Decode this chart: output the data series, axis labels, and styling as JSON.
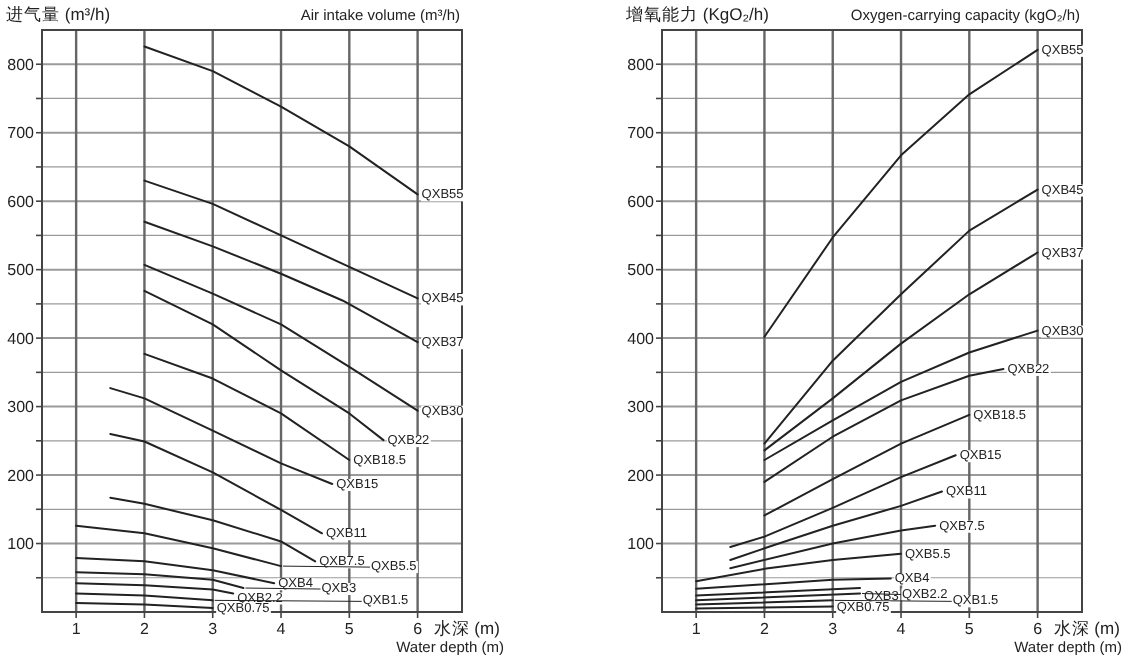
{
  "chart_data": [
    {
      "type": "line",
      "ylabel": "进气量 (m³/h)",
      "title": "Air intake volume (m³/h)",
      "xlabel": "水深 (m)",
      "annotations": [
        "Water depth (m)"
      ],
      "grid": true,
      "xlim": [
        0.5,
        6.65
      ],
      "ylim": [
        0,
        850
      ],
      "xticks": [
        1,
        2,
        3,
        4,
        5,
        6
      ],
      "yticks": [
        {
          "value": 50,
          "label": null
        },
        100,
        {
          "value": 150,
          "label": null
        },
        200,
        {
          "value": 250,
          "label": null
        },
        300,
        {
          "value": 350,
          "label": null
        },
        400,
        {
          "value": 450,
          "label": null
        },
        500,
        {
          "value": 550,
          "label": null
        },
        600,
        {
          "value": 650,
          "label": null
        },
        700,
        {
          "value": 750,
          "label": null
        },
        800
      ],
      "series": [
        {
          "name": "QXB55",
          "color": "#222222",
          "x": [
            2,
            3,
            4,
            5,
            6
          ],
          "values": [
            826,
            790,
            738,
            680,
            610
          ]
        },
        {
          "name": "QXB45",
          "color": "#222222",
          "x": [
            2,
            3,
            4,
            5,
            6
          ],
          "values": [
            630,
            596,
            550,
            504,
            458
          ]
        },
        {
          "name": "QXB37",
          "color": "#222222",
          "x": [
            2,
            3,
            4,
            4.9,
            6
          ],
          "values": [
            570,
            534,
            494,
            455,
            394
          ]
        },
        {
          "name": "QXB30",
          "color": "#222222",
          "x": [
            2,
            3,
            4,
            5,
            6
          ],
          "values": [
            507,
            465,
            420,
            358,
            294
          ]
        },
        {
          "name": "QXB22",
          "color": "#222222",
          "x": [
            2,
            3,
            4,
            5,
            5.5
          ],
          "values": [
            469,
            420,
            353,
            290,
            251
          ]
        },
        {
          "name": "QXB18.5",
          "color": "#222222",
          "x": [
            2,
            3,
            4,
            5
          ],
          "values": [
            377,
            341,
            290,
            222
          ]
        },
        {
          "name": "QXB15",
          "color": "#222222",
          "x": [
            1.5,
            2,
            3,
            4,
            4.75
          ],
          "values": [
            327,
            312,
            265,
            217,
            187
          ]
        },
        {
          "name": "QXB11",
          "color": "#222222",
          "x": [
            1.5,
            2,
            3,
            4,
            4.6
          ],
          "values": [
            260,
            249,
            204,
            149,
            115
          ]
        },
        {
          "name": "QXB7.5",
          "color": "#222222",
          "x": [
            1.5,
            2,
            3,
            4,
            4.5
          ],
          "values": [
            167,
            158,
            134,
            103,
            74
          ]
        },
        {
          "name": "QXB5.5",
          "color": "#222222",
          "x": [
            1,
            2,
            3,
            4
          ],
          "values": [
            126,
            115,
            93,
            67
          ]
        },
        {
          "name": "QXB4",
          "color": "#222222",
          "x": [
            1,
            2,
            3,
            3.9
          ],
          "values": [
            79,
            74,
            61,
            42
          ]
        },
        {
          "name": "QXB3",
          "color": "#222222",
          "x": [
            1,
            2,
            3,
            3.45
          ],
          "values": [
            58,
            55,
            47,
            35
          ]
        },
        {
          "name": "QXB2.2",
          "color": "#222222",
          "x": [
            1,
            2,
            3,
            3.3
          ],
          "values": [
            42,
            39,
            33,
            27
          ]
        },
        {
          "name": "QXB1.5",
          "color": "#222222",
          "x": [
            1,
            2,
            3
          ],
          "values": [
            27,
            24,
            17
          ]
        },
        {
          "name": "QXB0.75",
          "color": "#222222",
          "x": [
            1,
            2,
            3
          ],
          "values": [
            13,
            11,
            6
          ]
        }
      ]
    },
    {
      "type": "line",
      "ylabel": "增氧能力 (KgO₂/h)",
      "title": "Oxygen-carrying capacity (kgO₂/h)",
      "xlabel": "水深 (m)",
      "annotations": [
        "Water depth (m)"
      ],
      "grid": true,
      "xlim": [
        0.5,
        6.65
      ],
      "ylim": [
        0,
        850
      ],
      "xticks": [
        1,
        2,
        3,
        4,
        5,
        6
      ],
      "yticks": [
        {
          "value": 50,
          "label": null
        },
        100,
        {
          "value": 150,
          "label": null
        },
        200,
        {
          "value": 250,
          "label": null
        },
        300,
        {
          "value": 350,
          "label": null
        },
        400,
        {
          "value": 450,
          "label": null
        },
        500,
        {
          "value": 550,
          "label": null
        },
        600,
        {
          "value": 650,
          "label": null
        },
        700,
        {
          "value": 750,
          "label": null
        },
        800
      ],
      "series": [
        {
          "name": "QXB55",
          "color": "#222222",
          "x": [
            2,
            3,
            4,
            5,
            6
          ],
          "values": [
            402,
            547,
            667,
            756,
            821
          ]
        },
        {
          "name": "QXB45",
          "color": "#222222",
          "x": [
            2,
            3,
            4,
            5,
            6
          ],
          "values": [
            246,
            367,
            464,
            557,
            617
          ]
        },
        {
          "name": "QXB37",
          "color": "#222222",
          "x": [
            2,
            3,
            4,
            5,
            6
          ],
          "values": [
            236,
            312,
            392,
            464,
            525
          ]
        },
        {
          "name": "QXB30",
          "color": "#222222",
          "x": [
            2,
            3,
            4,
            5,
            6
          ],
          "values": [
            222,
            280,
            336,
            379,
            411
          ]
        },
        {
          "name": "QXB22",
          "color": "#222222",
          "x": [
            2,
            3,
            4,
            5,
            5.5
          ],
          "values": [
            190,
            256,
            309,
            345,
            355
          ]
        },
        {
          "name": "QXB18.5",
          "color": "#222222",
          "x": [
            2,
            3,
            4,
            5
          ],
          "values": [
            141,
            194,
            246,
            288
          ]
        },
        {
          "name": "QXB15",
          "color": "#222222",
          "x": [
            1.5,
            2,
            3,
            4,
            4.8
          ],
          "values": [
            95,
            110,
            152,
            197,
            229
          ]
        },
        {
          "name": "QXB11",
          "color": "#222222",
          "x": [
            1.5,
            2,
            3,
            4,
            4.6
          ],
          "values": [
            76,
            93,
            126,
            155,
            176
          ]
        },
        {
          "name": "QXB7.5",
          "color": "#222222",
          "x": [
            1.5,
            3,
            4,
            4.5
          ],
          "values": [
            64,
            100,
            119,
            126
          ]
        },
        {
          "name": "QXB5.5",
          "color": "#222222",
          "x": [
            1,
            2,
            3,
            4
          ],
          "values": [
            45,
            63,
            76,
            85
          ]
        },
        {
          "name": "QXB4",
          "color": "#222222",
          "x": [
            1,
            3,
            3.85
          ],
          "values": [
            34,
            47,
            49
          ]
        },
        {
          "name": "QXB3",
          "color": "#222222",
          "x": [
            1,
            3.4
          ],
          "values": [
            24,
            35
          ]
        },
        {
          "name": "QXB2.2",
          "color": "#222222",
          "x": [
            1,
            3.4
          ],
          "values": [
            17,
            27
          ]
        },
        {
          "name": "QXB1.5",
          "color": "#222222",
          "x": [
            1,
            3
          ],
          "values": [
            11,
            17
          ]
        },
        {
          "name": "QXB0.75",
          "color": "#222222",
          "x": [
            1,
            3
          ],
          "values": [
            5,
            8
          ]
        }
      ]
    }
  ]
}
